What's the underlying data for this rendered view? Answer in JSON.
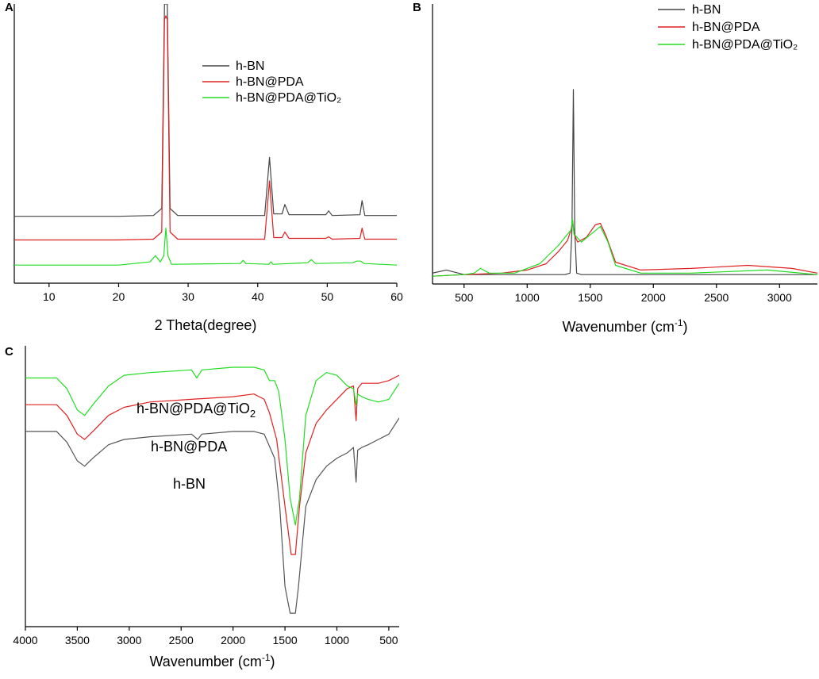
{
  "chart_data": [
    {
      "panel": "A",
      "type": "line",
      "xlabel": "2 Theta(degree)",
      "ylabel": "",
      "xlim": [
        5,
        60
      ],
      "xticks": [
        10,
        20,
        30,
        40,
        50,
        60
      ],
      "y_axis_ticks": false,
      "legend": "top-right",
      "series": [
        {
          "name": "h-BN",
          "color": "#444444",
          "x": [
            5,
            20,
            25,
            26.2,
            26.6,
            26.8,
            27.0,
            27.4,
            28.5,
            41.0,
            41.7,
            42.3,
            43.5,
            43.9,
            44.5,
            49.8,
            50.2,
            50.7,
            54.7,
            55.0,
            55.4,
            60
          ],
          "y": [
            0.3,
            0.3,
            0.31,
            0.4,
            3.0,
            3.0,
            3.0,
            0.4,
            0.31,
            0.31,
            1.05,
            0.33,
            0.33,
            0.45,
            0.32,
            0.32,
            0.37,
            0.31,
            0.32,
            0.5,
            0.31,
            0.31
          ]
        },
        {
          "name": "h-BN@PDA",
          "color": "#e02020",
          "x": [
            5,
            20,
            25,
            26.2,
            26.6,
            26.8,
            27.0,
            27.4,
            28.5,
            41.0,
            41.7,
            42.3,
            43.5,
            43.9,
            44.5,
            49.8,
            50.2,
            50.7,
            54.7,
            55.0,
            55.4,
            60
          ],
          "y": [
            0.0,
            0.0,
            0.01,
            0.1,
            2.8,
            2.85,
            2.8,
            0.1,
            0.01,
            0.01,
            0.75,
            0.03,
            0.03,
            0.1,
            0.02,
            0.02,
            0.04,
            0.01,
            0.02,
            0.15,
            0.01,
            0.01
          ]
        },
        {
          "name": "h-BN@PDA@TiO₂",
          "color": "#22dd22",
          "x": [
            5,
            20,
            24.5,
            25.3,
            26.0,
            26.5,
            26.8,
            27.1,
            27.6,
            37.5,
            37.9,
            38.3,
            41.6,
            41.9,
            42.2,
            47.2,
            47.7,
            48.3,
            53.7,
            54.2,
            54.8,
            55.3,
            60
          ],
          "y": [
            -0.32,
            -0.32,
            -0.28,
            -0.2,
            -0.28,
            -0.2,
            0.15,
            -0.2,
            -0.31,
            -0.3,
            -0.26,
            -0.3,
            -0.31,
            -0.28,
            -0.31,
            -0.29,
            -0.25,
            -0.3,
            -0.29,
            -0.27,
            -0.27,
            -0.3,
            -0.32
          ]
        }
      ]
    },
    {
      "panel": "B",
      "type": "line",
      "xlabel": "Wavenumber (cm⁻¹)",
      "xlabel_text": "Wavenumber (cm",
      "xlabel_sup": "-1",
      "xlabel_close": ")",
      "ylabel": "",
      "xlim": [
        250,
        3300
      ],
      "xticks": [
        500,
        1000,
        1500,
        2000,
        2500,
        3000
      ],
      "y_axis_ticks": false,
      "legend": "top-right",
      "series": [
        {
          "name": "h-BN",
          "color": "#444444",
          "x": [
            250,
            360,
            500,
            1000,
            1300,
            1340,
            1355,
            1366,
            1377,
            1392,
            1430,
            2000,
            3000,
            3300
          ],
          "y": [
            0.02,
            0.04,
            0.01,
            0.01,
            0.01,
            0.02,
            0.3,
            1.2,
            0.3,
            0.02,
            0.01,
            0.01,
            0.01,
            0.01
          ]
        },
        {
          "name": "h-BN@PDA",
          "color": "#e02020",
          "x": [
            250,
            500,
            800,
            1000,
            1150,
            1250,
            1320,
            1348,
            1360,
            1372,
            1400,
            1470,
            1540,
            1580,
            1625,
            1700,
            1900,
            2300,
            2750,
            3100,
            3300
          ],
          "y": [
            0.0,
            0.01,
            0.02,
            0.04,
            0.08,
            0.16,
            0.23,
            0.3,
            0.36,
            0.27,
            0.22,
            0.25,
            0.33,
            0.34,
            0.26,
            0.09,
            0.04,
            0.05,
            0.07,
            0.05,
            0.02
          ]
        },
        {
          "name": "h-BN@PDA@TiO₂",
          "color": "#22dd22",
          "x": [
            250,
            500,
            580,
            630,
            700,
            900,
            1100,
            1250,
            1320,
            1350,
            1358,
            1372,
            1430,
            1520,
            1580,
            1640,
            1700,
            1900,
            2300,
            2900,
            3300
          ],
          "y": [
            0.0,
            0.01,
            0.02,
            0.05,
            0.02,
            0.02,
            0.08,
            0.2,
            0.27,
            0.3,
            0.37,
            0.27,
            0.22,
            0.28,
            0.32,
            0.22,
            0.07,
            0.02,
            0.02,
            0.04,
            0.01
          ]
        }
      ]
    },
    {
      "panel": "C",
      "type": "line",
      "xlabel": "Wavenumber (cm⁻¹)",
      "xlabel_text": "Wavenumber (cm",
      "xlabel_sup": "-1",
      "xlabel_close": ")",
      "ylabel": "",
      "xlim": [
        4000,
        400
      ],
      "xticks": [
        4000,
        3500,
        3000,
        2500,
        2000,
        1500,
        1000,
        500
      ],
      "y_axis_ticks": false,
      "series_labels_inline": true,
      "series": [
        {
          "name": "h-BN",
          "label": "h-BN",
          "color": "#555555",
          "x": [
            4000,
            3700,
            3600,
            3500,
            3430,
            3350,
            3200,
            3050,
            2800,
            2400,
            2340,
            2300,
            2000,
            1800,
            1700,
            1600,
            1550,
            1500,
            1450,
            1400,
            1370,
            1300,
            1200,
            1100,
            1000,
            900,
            840,
            815,
            800,
            760,
            700,
            600,
            500,
            400
          ],
          "y": [
            0.68,
            0.68,
            0.64,
            0.57,
            0.55,
            0.58,
            0.63,
            0.65,
            0.66,
            0.67,
            0.65,
            0.67,
            0.68,
            0.68,
            0.67,
            0.58,
            0.4,
            0.1,
            0.0,
            0.0,
            0.1,
            0.4,
            0.5,
            0.55,
            0.58,
            0.6,
            0.62,
            0.49,
            0.61,
            0.62,
            0.63,
            0.65,
            0.67,
            0.73
          ]
        },
        {
          "name": "h-BN@PDA",
          "label": "h-BN@PDA",
          "color": "#e02020",
          "x": [
            4000,
            3700,
            3600,
            3500,
            3430,
            3350,
            3200,
            3050,
            2800,
            2400,
            2000,
            1800,
            1700,
            1650,
            1580,
            1500,
            1440,
            1400,
            1360,
            1300,
            1200,
            1100,
            1000,
            900,
            840,
            815,
            800,
            760,
            700,
            600,
            500,
            400
          ],
          "y": [
            0.78,
            0.78,
            0.74,
            0.67,
            0.65,
            0.68,
            0.74,
            0.77,
            0.79,
            0.8,
            0.81,
            0.82,
            0.8,
            0.75,
            0.65,
            0.4,
            0.22,
            0.22,
            0.4,
            0.6,
            0.71,
            0.76,
            0.8,
            0.84,
            0.85,
            0.72,
            0.84,
            0.86,
            0.86,
            0.86,
            0.87,
            0.89
          ]
        },
        {
          "name": "h-BN@PDA@TiO₂",
          "label": "h-BN@PDA@TiO₂",
          "label_base": "h-BN@PDA@TiO",
          "label_sub": "2",
          "color": "#22dd22",
          "x": [
            4000,
            3700,
            3600,
            3500,
            3430,
            3350,
            3200,
            3050,
            2800,
            2400,
            2350,
            2300,
            2000,
            1800,
            1700,
            1650,
            1600,
            1560,
            1500,
            1450,
            1400,
            1360,
            1300,
            1200,
            1100,
            1000,
            900,
            840,
            815,
            800,
            760,
            700,
            600,
            500,
            400
          ],
          "y": [
            0.88,
            0.88,
            0.84,
            0.76,
            0.74,
            0.78,
            0.85,
            0.89,
            0.9,
            0.91,
            0.88,
            0.91,
            0.92,
            0.92,
            0.91,
            0.87,
            0.87,
            0.83,
            0.65,
            0.43,
            0.33,
            0.43,
            0.74,
            0.87,
            0.9,
            0.89,
            0.85,
            0.84,
            0.78,
            0.82,
            0.81,
            0.8,
            0.79,
            0.8,
            0.86
          ]
        }
      ]
    }
  ]
}
